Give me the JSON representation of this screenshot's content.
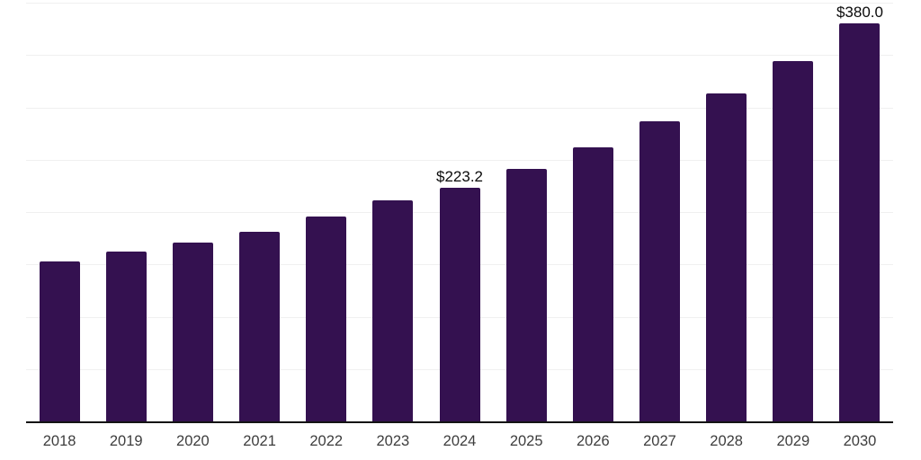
{
  "chart_data": {
    "type": "bar",
    "title": "",
    "xlabel": "",
    "ylabel": "",
    "categories": [
      "2018",
      "2019",
      "2020",
      "2021",
      "2022",
      "2023",
      "2024",
      "2025",
      "2026",
      "2027",
      "2028",
      "2029",
      "2030"
    ],
    "values": [
      152.4,
      161.9,
      170.7,
      181.3,
      195.5,
      210.9,
      223.2,
      241.1,
      262.2,
      286.5,
      313.5,
      343.8,
      380.0
    ],
    "data_labels": [
      null,
      null,
      null,
      null,
      null,
      null,
      "$223.2",
      null,
      null,
      null,
      null,
      null,
      "$380.0"
    ],
    "ylim": [
      0,
      400
    ],
    "grid_step": 50,
    "grid": true,
    "legend": false,
    "y_axis_tick_labels_visible": false
  },
  "colors": {
    "bar_fill": "#341150",
    "gridline": "#f0f0f0",
    "axis_line": "#141414",
    "tick_label": "#3d3d3d",
    "data_label": "#0a0a0a",
    "background": "#ffffff"
  }
}
